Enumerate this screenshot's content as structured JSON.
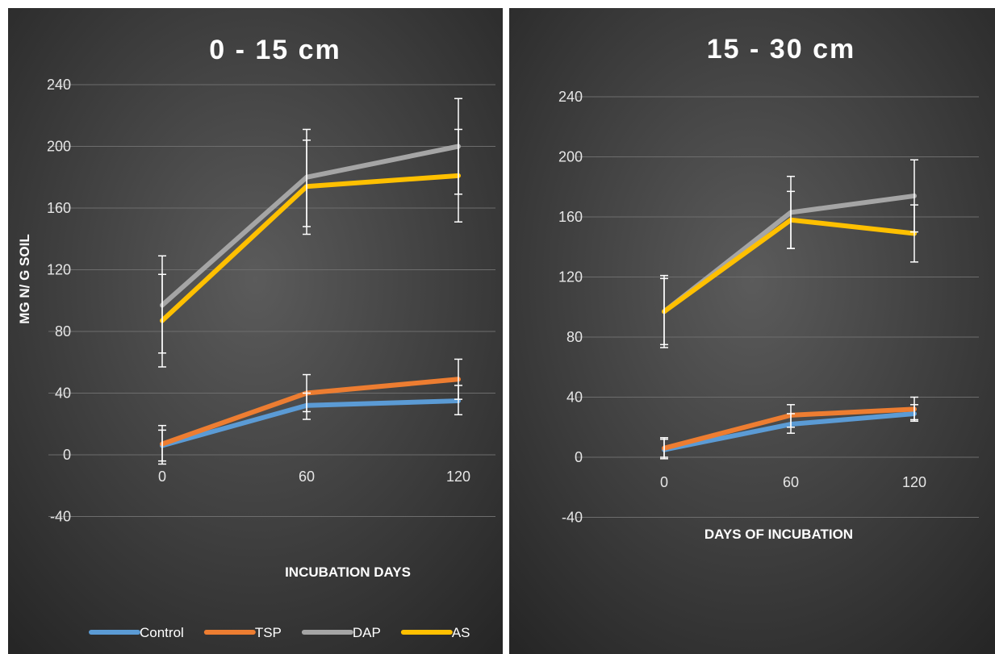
{
  "chart_data": [
    {
      "type": "line",
      "title": "0 - 15 cm",
      "xlabel": "INCUBATION DAYS",
      "ylabel": "MG N/ G SOIL",
      "categories": [
        "0",
        "60",
        "120"
      ],
      "ylim": [
        -40,
        240
      ],
      "yticks": [
        "240",
        "200",
        "160",
        "120",
        "80",
        "40",
        "0",
        "-40"
      ],
      "grid": true,
      "legend": "bottom",
      "series": [
        {
          "name": "Control",
          "color": "#5b9bd5",
          "values": [
            6,
            32,
            35
          ],
          "errors": [
            [
              -6,
              19
            ],
            [
              23,
              40
            ],
            [
              26,
              45
            ]
          ]
        },
        {
          "name": "TSP",
          "color": "#ed7d31",
          "values": [
            7,
            40,
            49
          ],
          "errors": [
            [
              -4,
              16
            ],
            [
              28,
              52
            ],
            [
              36,
              62
            ]
          ]
        },
        {
          "name": "DAP",
          "color": "#a5a5a5",
          "values": [
            97,
            180,
            200
          ],
          "errors": [
            [
              66,
              129
            ],
            [
              148,
              211
            ],
            [
              169,
              231
            ]
          ]
        },
        {
          "name": "AS",
          "color": "#ffc000",
          "values": [
            87,
            174,
            181
          ],
          "errors": [
            [
              57,
              117
            ],
            [
              143,
              204
            ],
            [
              151,
              211
            ]
          ]
        }
      ]
    },
    {
      "type": "line",
      "title": "15 - 30 cm",
      "xlabel": "DAYS OF INCUBATION",
      "ylabel": "",
      "categories": [
        "0",
        "60",
        "120"
      ],
      "ylim": [
        -40,
        240
      ],
      "yticks": [
        "240",
        "200",
        "160",
        "120",
        "80",
        "40",
        "0",
        "-40"
      ],
      "grid": true,
      "legend": "none",
      "series": [
        {
          "name": "Control",
          "color": "#5b9bd5",
          "values": [
            5,
            22,
            29
          ],
          "errors": [
            [
              -1,
              12
            ],
            [
              16,
              29
            ],
            [
              24,
              35
            ]
          ]
        },
        {
          "name": "TSP",
          "color": "#ed7d31",
          "values": [
            6,
            28,
            32
          ],
          "errors": [
            [
              0,
              13
            ],
            [
              20,
              35
            ],
            [
              25,
              40
            ]
          ]
        },
        {
          "name": "DAP",
          "color": "#a5a5a5",
          "values": [
            97,
            163,
            174
          ],
          "errors": [
            [
              73,
              121
            ],
            [
              139,
              187
            ],
            [
              150,
              198
            ]
          ]
        },
        {
          "name": "AS",
          "color": "#ffc000",
          "values": [
            97,
            158,
            149
          ],
          "errors": [
            [
              75,
              119
            ],
            [
              139,
              177
            ],
            [
              130,
              168
            ]
          ]
        }
      ]
    }
  ]
}
